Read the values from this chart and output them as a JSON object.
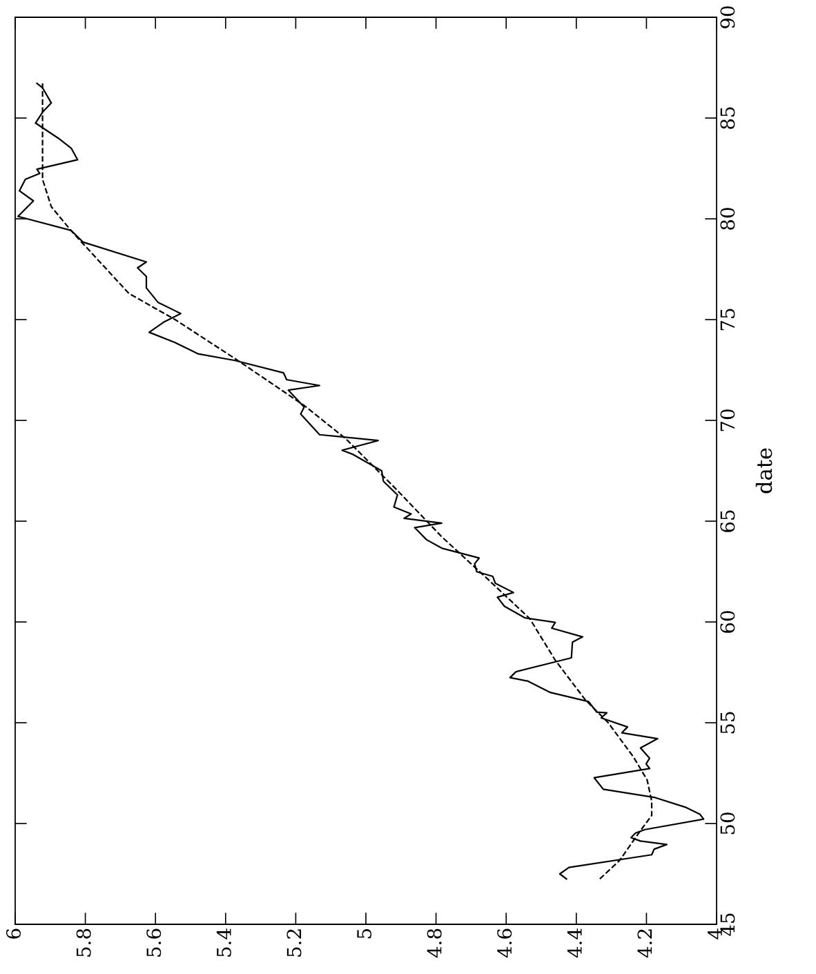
{
  "chart_data": {
    "type": "line",
    "orientation": "horizontal",
    "ylabel": "date",
    "ylim": [
      45,
      90
    ],
    "yticks": [
      45,
      50,
      55,
      60,
      65,
      70,
      75,
      80,
      85,
      90
    ],
    "xlim": [
      6,
      4
    ],
    "xticks": [
      6,
      5.8,
      5.6,
      5.4,
      5.2,
      5,
      4.8,
      4.6,
      4.4,
      4.2,
      4
    ],
    "grid": false,
    "marker": "none",
    "series": [
      {
        "color": "#000000",
        "line_style": "solid",
        "x": [
          47.25,
          47.5,
          47.82,
          48.45,
          48.73,
          48.96,
          49.13,
          49.3,
          49.53,
          49.7,
          50.22,
          50.45,
          50.79,
          51.3,
          51.7,
          52.27,
          52.73,
          52.96,
          53.24,
          53.75,
          54.21,
          54.5,
          54.79,
          55.24,
          55.49,
          55.53,
          56.05,
          56.5,
          57.07,
          57.24,
          57.53,
          58.22,
          59.0,
          59.26,
          59.69,
          59.98,
          60.2,
          60.78,
          61.23,
          61.46,
          61.92,
          62.26,
          62.49,
          62.89,
          63.17,
          63.65,
          64.08,
          64.68,
          64.9,
          65.14,
          65.36,
          65.7,
          66.3,
          66.98,
          67.5,
          68.32,
          68.52,
          69.0,
          69.2,
          69.29,
          70.32,
          70.66,
          71.5,
          71.73,
          72.02,
          72.36,
          72.97,
          73.3,
          73.86,
          74.37,
          74.87,
          75.3,
          75.86,
          76.57,
          77.14,
          77.57,
          77.86,
          78.85,
          79.42,
          80.12,
          80.89,
          81.39,
          81.96,
          82.25,
          82.46,
          82.93,
          83.5,
          84.0,
          84.75,
          85.29,
          85.75,
          86.5,
          86.72
        ],
        "values": [
          4.428,
          4.447,
          4.421,
          4.185,
          4.178,
          4.142,
          4.217,
          4.244,
          4.231,
          4.204,
          4.037,
          4.047,
          4.086,
          4.178,
          4.323,
          4.349,
          4.191,
          4.201,
          4.191,
          4.217,
          4.168,
          4.27,
          4.254,
          4.329,
          4.313,
          4.342,
          4.365,
          4.474,
          4.539,
          4.589,
          4.572,
          4.414,
          4.411,
          4.382,
          4.47,
          4.46,
          4.546,
          4.605,
          4.625,
          4.579,
          4.631,
          4.638,
          4.684,
          4.69,
          4.677,
          4.782,
          4.827,
          4.861,
          4.784,
          4.891,
          4.871,
          4.92,
          4.91,
          4.95,
          4.955,
          5.038,
          5.068,
          4.965,
          5.078,
          5.132,
          5.186,
          5.176,
          5.221,
          5.132,
          5.226,
          5.235,
          5.373,
          5.478,
          5.544,
          5.618,
          5.577,
          5.528,
          5.593,
          5.626,
          5.626,
          5.651,
          5.626,
          5.807,
          5.84,
          5.992,
          5.948,
          5.988,
          5.971,
          5.93,
          5.938,
          5.822,
          5.84,
          5.877,
          5.942,
          5.922,
          5.897,
          5.922,
          5.938
        ]
      },
      {
        "color": "#000000",
        "line_style": "dashed",
        "x": [
          47.25,
          48.16,
          49.65,
          50.4,
          51.1,
          52.16,
          53.3,
          55.0,
          56.15,
          58.1,
          60.17,
          62.1,
          64.23,
          66.7,
          69.1,
          70.74,
          72.96,
          75.0,
          76.3,
          79.4,
          80.6,
          81.96,
          83.1,
          86.72
        ],
        "values": [
          4.333,
          4.277,
          4.217,
          4.185,
          4.185,
          4.198,
          4.237,
          4.309,
          4.375,
          4.46,
          4.533,
          4.651,
          4.784,
          4.92,
          5.058,
          5.176,
          5.364,
          5.544,
          5.676,
          5.84,
          5.897,
          5.922,
          5.922,
          5.922
        ]
      }
    ]
  }
}
